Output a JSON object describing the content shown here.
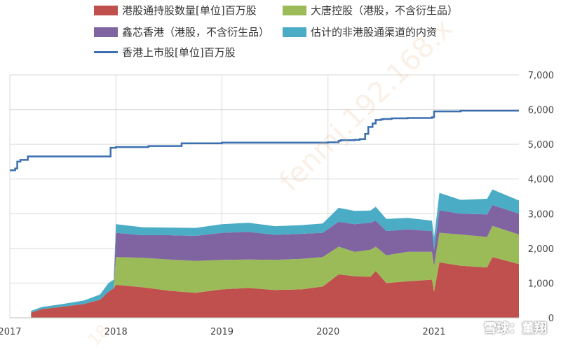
{
  "chart_data": {
    "type": "area",
    "title": "",
    "legend": [
      {
        "label": "港股通持股数量[单位]百万股",
        "color": "#c0504d",
        "kind": "area"
      },
      {
        "label": "大唐控股（港股，不含衍生品）",
        "color": "#9bbb59",
        "kind": "area"
      },
      {
        "label": "鑫芯香港（港股，不含衍生品）",
        "color": "#8064a2",
        "kind": "area"
      },
      {
        "label": "估计的非港股通渠道的内资",
        "color": "#4bacc6",
        "kind": "area"
      },
      {
        "label": "香港上市股[单位]百万股",
        "color": "#3a6fb0",
        "kind": "line"
      }
    ],
    "x_ticks": [
      "2017",
      "2018",
      "2019",
      "2020",
      "2021"
    ],
    "x_range": [
      2017.0,
      2021.8
    ],
    "y_ticks": [
      "0",
      "1,000",
      "2,000",
      "3,000",
      "4,000",
      "5,000",
      "6,000",
      "7,000"
    ],
    "ylim": [
      0,
      7000
    ],
    "grid": true,
    "stacked_series": [
      {
        "name": "港股通持股数量[单位]百万股",
        "x": [
          2017.2,
          2017.3,
          2017.5,
          2017.7,
          2017.85,
          2017.93,
          2017.98,
          2018.0,
          2018.25,
          2018.5,
          2018.75,
          2019.0,
          2019.25,
          2019.5,
          2019.75,
          2019.95,
          2020.1,
          2020.25,
          2020.4,
          2020.45,
          2020.55,
          2020.75,
          2020.98,
          2021.0,
          2021.05,
          2021.25,
          2021.5,
          2021.55,
          2021.8
        ],
        "values": [
          150,
          250,
          320,
          400,
          520,
          750,
          850,
          950,
          880,
          780,
          720,
          820,
          860,
          800,
          820,
          900,
          1250,
          1200,
          1180,
          1350,
          1000,
          1050,
          1100,
          750,
          1600,
          1500,
          1450,
          1750,
          1550
        ]
      },
      {
        "name": "大唐控股（港股，不含衍生品）",
        "x": [
          2017.2,
          2017.98,
          2018.0,
          2018.25,
          2018.5,
          2018.75,
          2019.0,
          2019.25,
          2019.5,
          2019.75,
          2019.95,
          2020.1,
          2020.25,
          2020.4,
          2020.45,
          2020.55,
          2020.75,
          2020.98,
          2021.0,
          2021.05,
          2021.25,
          2021.5,
          2021.55,
          2021.8
        ],
        "values": [
          0,
          0,
          800,
          850,
          900,
          920,
          850,
          820,
          870,
          880,
          850,
          800,
          700,
          780,
          700,
          800,
          850,
          800,
          750,
          850,
          900,
          880,
          900,
          850
        ]
      },
      {
        "name": "鑫芯香港（港股，不含衍生品）",
        "x": [
          2017.2,
          2017.98,
          2018.0,
          2018.25,
          2018.5,
          2018.75,
          2019.0,
          2019.25,
          2019.5,
          2019.75,
          2019.95,
          2020.1,
          2020.25,
          2020.4,
          2020.45,
          2020.55,
          2020.75,
          2020.98,
          2021.0,
          2021.05,
          2021.25,
          2021.5,
          2021.55,
          2021.8
        ],
        "values": [
          0,
          0,
          700,
          650,
          700,
          720,
          780,
          800,
          720,
          720,
          700,
          720,
          800,
          780,
          750,
          700,
          650,
          600,
          450,
          650,
          600,
          650,
          600,
          600
        ]
      },
      {
        "name": "估计的非港股通渠道的内资",
        "x": [
          2017.2,
          2017.3,
          2017.5,
          2017.7,
          2017.85,
          2017.93,
          2017.98,
          2018.0,
          2018.25,
          2018.5,
          2018.75,
          2019.0,
          2019.25,
          2019.5,
          2019.75,
          2019.95,
          2020.1,
          2020.25,
          2020.4,
          2020.45,
          2020.55,
          2020.75,
          2020.98,
          2021.0,
          2021.05,
          2021.25,
          2021.5,
          2021.55,
          2021.8
        ],
        "values": [
          50,
          60,
          80,
          100,
          150,
          250,
          250,
          250,
          230,
          220,
          230,
          250,
          260,
          250,
          250,
          270,
          400,
          380,
          350,
          400,
          350,
          330,
          300,
          350,
          500,
          400,
          450,
          450,
          380
        ]
      }
    ],
    "line_series": {
      "name": "香港上市股[单位]百万股",
      "x": [
        2017.0,
        2017.05,
        2017.07,
        2017.1,
        2017.15,
        2017.17,
        2017.25,
        2017.5,
        2017.7,
        2017.9,
        2017.93,
        2017.95,
        2018.0,
        2018.3,
        2018.31,
        2018.6,
        2018.62,
        2018.95,
        2019.0,
        2019.5,
        2019.9,
        2020.0,
        2020.1,
        2020.12,
        2020.25,
        2020.3,
        2020.35,
        2020.38,
        2020.42,
        2020.45,
        2020.5,
        2020.52,
        2020.6,
        2020.75,
        2020.98,
        2021.0,
        2021.2,
        2021.25,
        2021.8
      ],
      "values": [
        4250,
        4300,
        4500,
        4550,
        4550,
        4650,
        4650,
        4650,
        4650,
        4650,
        4650,
        4900,
        4920,
        4930,
        4950,
        4950,
        5030,
        5030,
        5050,
        5050,
        5050,
        5060,
        5100,
        5120,
        5130,
        5150,
        5300,
        5500,
        5600,
        5700,
        5720,
        5730,
        5750,
        5760,
        5780,
        5950,
        5950,
        5970,
        5970
      ]
    }
  },
  "watermark": {
    "diag_text": "fenmj.192.168.x",
    "diag_text2": "18"
  },
  "brand": {
    "text": "雪球：董翔"
  }
}
